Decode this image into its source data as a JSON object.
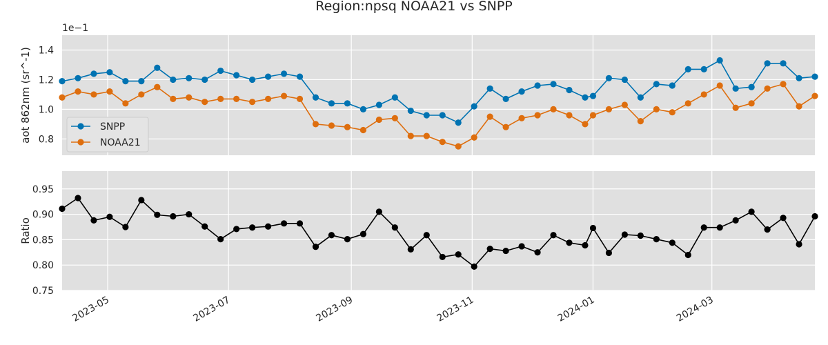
{
  "chart_data": {
    "type": "line",
    "title": "Region:npsq NOAA21 vs SNPP",
    "x": [
      "2023-04-08",
      "2023-04-16",
      "2023-04-24",
      "2023-05-02",
      "2023-05-10",
      "2023-05-18",
      "2023-05-26",
      "2023-06-03",
      "2023-06-11",
      "2023-06-19",
      "2023-06-27",
      "2023-07-05",
      "2023-07-13",
      "2023-07-21",
      "2023-07-29",
      "2023-08-06",
      "2023-08-14",
      "2023-08-22",
      "2023-08-30",
      "2023-09-07",
      "2023-09-15",
      "2023-09-23",
      "2023-10-01",
      "2023-10-09",
      "2023-10-17",
      "2023-10-25",
      "2023-11-02",
      "2023-11-10",
      "2023-11-18",
      "2023-11-26",
      "2023-12-04",
      "2023-12-12",
      "2023-12-20",
      "2023-12-28",
      "2024-01-01",
      "2024-01-09",
      "2024-01-17",
      "2024-01-25",
      "2024-02-02",
      "2024-02-10",
      "2024-02-18",
      "2024-02-26",
      "2024-03-05",
      "2024-03-13",
      "2024-03-21",
      "2024-03-29",
      "2024-04-06",
      "2024-04-14",
      "2024-04-22"
    ],
    "xlim": [
      "2023-04-08",
      "2024-04-22"
    ],
    "xticks": [
      "2023-05",
      "2023-07",
      "2023-09",
      "2023-11",
      "2024-01",
      "2024-03"
    ],
    "grid": true,
    "panels": [
      {
        "ylabel": "aot 862nm (sr^-1)",
        "offset_text": "1e−1",
        "ylim": [
          0.69,
          1.5
        ],
        "yticks": [
          "0.8",
          "1.0",
          "1.2",
          "1.4"
        ],
        "legend": "lower-left",
        "series": [
          {
            "name": "SNPP",
            "color": "#0173b2",
            "values": [
              1.19,
              1.21,
              1.24,
              1.25,
              1.19,
              1.19,
              1.28,
              1.2,
              1.21,
              1.2,
              1.26,
              1.23,
              1.2,
              1.22,
              1.24,
              1.22,
              1.08,
              1.04,
              1.04,
              1.0,
              1.03,
              1.08,
              0.99,
              0.96,
              0.96,
              0.91,
              1.02,
              1.14,
              1.07,
              1.12,
              1.16,
              1.17,
              1.13,
              1.08,
              1.09,
              1.21,
              1.2,
              1.08,
              1.17,
              1.16,
              1.27,
              1.27,
              1.33,
              1.14,
              1.15,
              1.31,
              1.31,
              1.21,
              1.22
            ]
          },
          {
            "name": "NOAA21",
            "color": "#de6e0e",
            "values": [
              1.08,
              1.12,
              1.1,
              1.12,
              1.04,
              1.1,
              1.15,
              1.07,
              1.08,
              1.05,
              1.07,
              1.07,
              1.05,
              1.07,
              1.09,
              1.07,
              0.9,
              0.89,
              0.88,
              0.86,
              0.93,
              0.94,
              0.82,
              0.82,
              0.78,
              0.75,
              0.81,
              0.95,
              0.88,
              0.94,
              0.96,
              1.0,
              0.96,
              0.9,
              0.96,
              1.0,
              1.03,
              0.92,
              1.0,
              0.98,
              1.04,
              1.1,
              1.16,
              1.01,
              1.04,
              1.14,
              1.17,
              1.02,
              1.09
            ]
          }
        ]
      },
      {
        "ylabel": "Ratio",
        "ylim": [
          0.75,
          0.985
        ],
        "yticks": [
          "0.75",
          "0.80",
          "0.85",
          "0.90",
          "0.95"
        ],
        "series": [
          {
            "name": "",
            "color": "#000000",
            "values": [
              0.911,
              0.932,
              0.888,
              0.895,
              0.875,
              0.928,
              0.899,
              0.896,
              0.9,
              0.876,
              0.851,
              0.871,
              0.874,
              0.876,
              0.882,
              0.882,
              0.836,
              0.859,
              0.851,
              0.861,
              0.905,
              0.874,
              0.831,
              0.859,
              0.816,
              0.821,
              0.797,
              0.832,
              0.828,
              0.837,
              0.825,
              0.859,
              0.844,
              0.839,
              0.873,
              0.824,
              0.86,
              0.858,
              0.851,
              0.844,
              0.82,
              0.874,
              0.874,
              0.888,
              0.905,
              0.87,
              0.893,
              0.841,
              0.896
            ]
          }
        ]
      }
    ]
  }
}
